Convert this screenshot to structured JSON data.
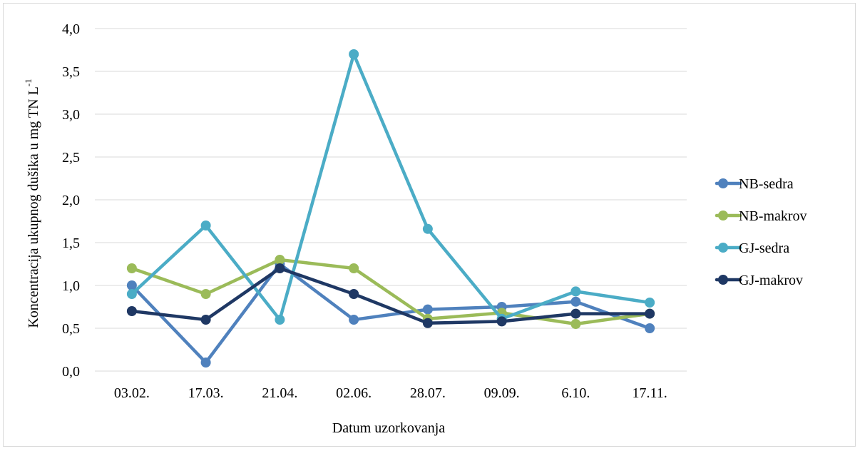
{
  "chart_data": {
    "type": "line",
    "categories": [
      "03.02.",
      "17.03.",
      "21.04.",
      "02.06.",
      "28.07.",
      "09.09.",
      "6.10.",
      "17.11."
    ],
    "series": [
      {
        "name": "NB-sedra",
        "color": "#4f81bd",
        "values": [
          1.0,
          0.1,
          1.25,
          0.6,
          0.72,
          0.75,
          0.81,
          0.5
        ]
      },
      {
        "name": "NB-makrov",
        "color": "#9bbb59",
        "values": [
          1.2,
          0.9,
          1.3,
          1.2,
          0.61,
          0.68,
          0.55,
          0.67
        ]
      },
      {
        "name": "GJ-sedra",
        "color": "#4bacc6",
        "values": [
          0.9,
          1.7,
          0.6,
          3.7,
          1.66,
          0.61,
          0.93,
          0.8
        ]
      },
      {
        "name": "GJ-makrov",
        "color": "#1f3864",
        "values": [
          0.7,
          0.6,
          1.2,
          0.9,
          0.56,
          0.58,
          0.67,
          0.67
        ]
      }
    ],
    "yticks": [
      "0,0",
      "0,5",
      "1,0",
      "1,5",
      "2,0",
      "2,5",
      "3,0",
      "3,5",
      "4,0"
    ],
    "ylim": [
      0,
      4
    ],
    "xlabel": "Datum uzorkovanja",
    "ylabel_main": "Koncentracija ukupnog dušika u mg TN L",
    "ylabel_sup": "-1",
    "grid": true,
    "legend_position": "right"
  }
}
